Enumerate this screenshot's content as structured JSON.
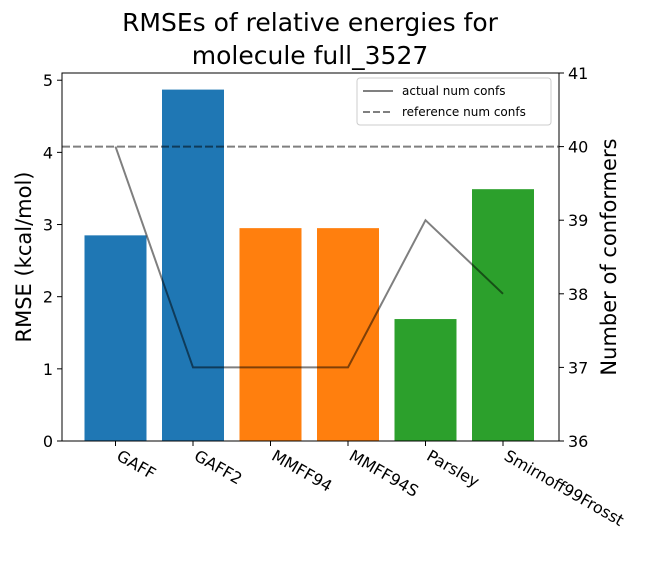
{
  "chart_data": {
    "type": "bar",
    "title_lines": [
      "RMSEs of relative energies for",
      "molecule full_3527"
    ],
    "ylabel": "RMSE (kcal/mol)",
    "y2label": "Number of conformers",
    "categories": [
      "GAFF",
      "GAFF2",
      "MMFF94",
      "MMFF94S",
      "Parsley",
      "Smirnoff99Frosst"
    ],
    "values": [
      2.85,
      4.87,
      2.95,
      2.95,
      1.69,
      3.49
    ],
    "bar_colors": [
      "#1f77b4",
      "#1f77b4",
      "#ff7f0e",
      "#ff7f0e",
      "#2ca02c",
      "#2ca02c"
    ],
    "ylim": [
      0,
      5.1
    ],
    "yticks": [
      "0",
      "1",
      "2",
      "3",
      "4",
      "5"
    ],
    "y2lim": [
      36,
      41
    ],
    "y2ticks": [
      "36",
      "37",
      "38",
      "39",
      "40",
      "41"
    ],
    "lines": [
      {
        "name": "actual num confs",
        "style": "solid",
        "color": "#808080",
        "values": [
          40,
          37,
          37,
          37,
          39,
          38
        ]
      },
      {
        "name": "reference num confs",
        "style": "dashed",
        "color": "#808080",
        "value": 40
      }
    ],
    "legend_position": "top-right",
    "grid": false
  }
}
